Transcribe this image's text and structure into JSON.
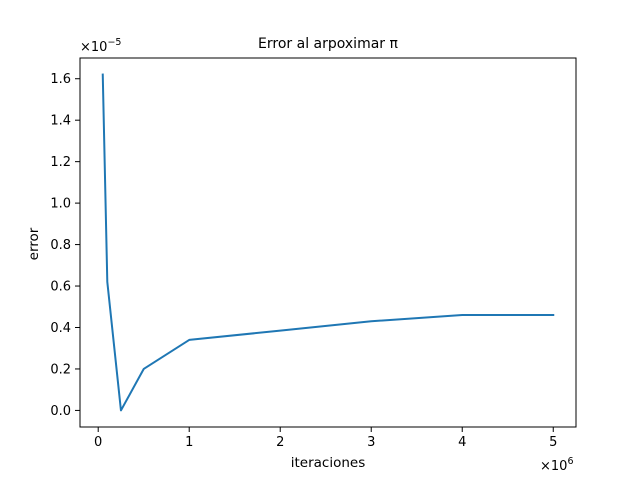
{
  "chart_data": {
    "type": "line",
    "title": "Error al arpoximar π",
    "xlabel": "iteraciones",
    "ylabel": "error",
    "x_offset_text": {
      "base": "×10",
      "exponent": "6"
    },
    "y_offset_text": {
      "base": "×10",
      "exponent": "−5"
    },
    "x_scale": 1000000,
    "y_scale": 1e-05,
    "xlim": [
      -0.2,
      5.25
    ],
    "ylim": [
      -0.08,
      1.7
    ],
    "x_ticks": [
      0,
      1,
      2,
      3,
      4,
      5
    ],
    "x_tick_labels": [
      "0",
      "1",
      "2",
      "3",
      "4",
      "5"
    ],
    "y_ticks": [
      0.0,
      0.2,
      0.4,
      0.6,
      0.8,
      1.0,
      1.2,
      1.4,
      1.6
    ],
    "y_tick_labels": [
      "0.0",
      "0.2",
      "0.4",
      "0.6",
      "0.8",
      "1.0",
      "1.2",
      "1.4",
      "1.6"
    ],
    "grid": false,
    "series": [
      {
        "color": "#1f77b4",
        "x": [
          0.05,
          0.1,
          0.25,
          0.5,
          1,
          2,
          3,
          4,
          5
        ],
        "y": [
          1.62,
          0.62,
          0.0,
          0.2,
          0.34,
          0.385,
          0.43,
          0.46,
          0.46
        ]
      }
    ]
  }
}
